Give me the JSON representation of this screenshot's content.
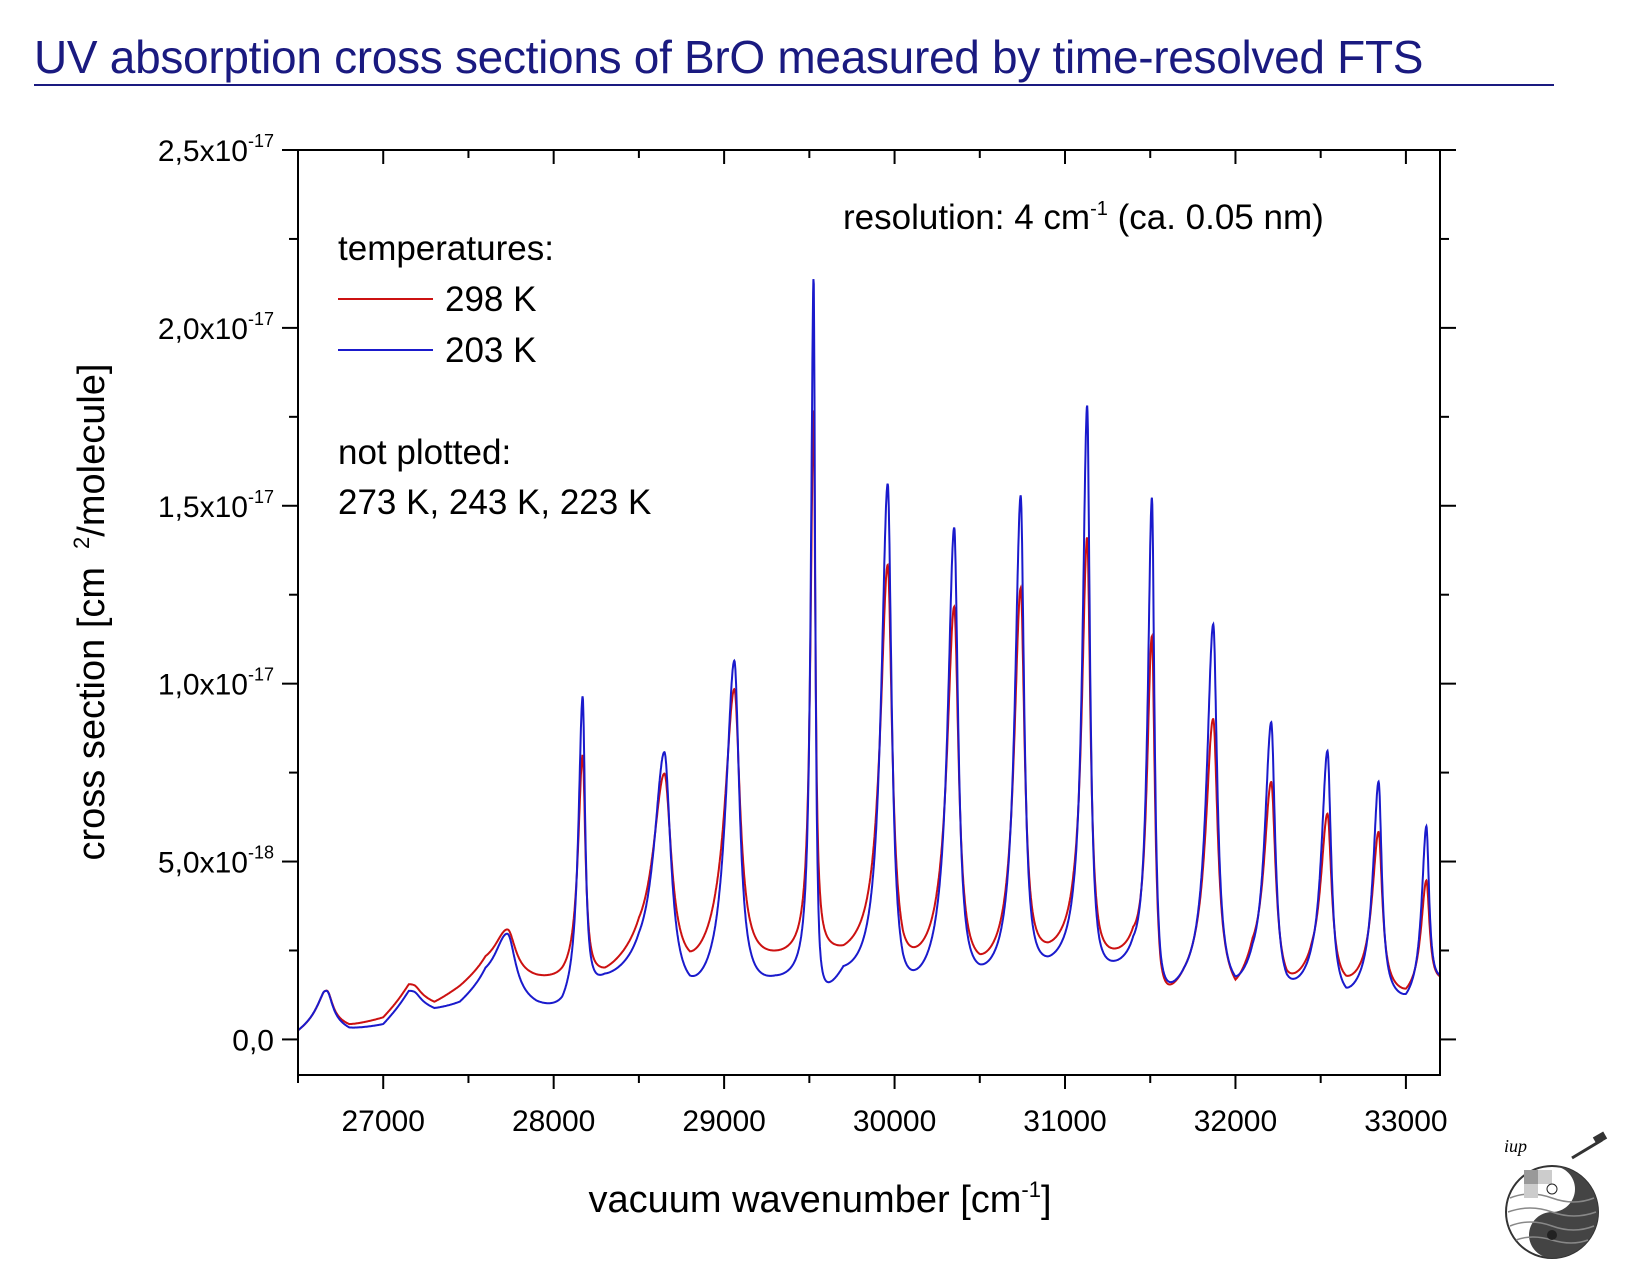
{
  "slide": {
    "title": "UV absorption cross sections of BrO measured by time-resolved FTS",
    "title_color": "#1a1a80"
  },
  "logo": {
    "text": "iup",
    "icon": "iup-globe-logo"
  },
  "chart_data": {
    "type": "line",
    "xlabel": "vacuum wavenumber [cm",
    "xlabel_sup": "-1",
    "xlabel_end": "]",
    "ylabel": "cross section [cm",
    "ylabel_sup": "2",
    "ylabel_end": "/molecule]",
    "xlim": [
      26500,
      33200
    ],
    "ylim": [
      -1e-18,
      2.5e-17
    ],
    "x_ticks": [
      27000,
      28000,
      29000,
      30000,
      31000,
      32000,
      33000
    ],
    "x_tick_labels": [
      "27000",
      "28000",
      "29000",
      "30000",
      "31000",
      "32000",
      "33000"
    ],
    "y_ticks": [
      0,
      5e-18,
      1e-17,
      1.5e-17,
      2e-17,
      2.5e-17
    ],
    "y_tick_labels": [
      {
        "base": "0,0",
        "exp": ""
      },
      {
        "base": "5,0x10",
        "exp": "-18"
      },
      {
        "base": "1,0x10",
        "exp": "-17"
      },
      {
        "base": "1,5x10",
        "exp": "-17"
      },
      {
        "base": "2,0x10",
        "exp": "-17"
      },
      {
        "base": "2,5x10",
        "exp": "-17"
      }
    ],
    "grid": false,
    "legend_position": "top-left",
    "legend_title": "temperatures:",
    "series": [
      {
        "name": "298 K",
        "color": "#cc1111",
        "baseline": [
          [
            26500,
            1e-19
          ],
          [
            26650,
            5e-19
          ],
          [
            26800,
            3e-19
          ],
          [
            27000,
            5e-19
          ],
          [
            27150,
            1.2e-18
          ],
          [
            27300,
            9e-19
          ],
          [
            27450,
            1.3e-18
          ],
          [
            27600,
            1.8e-18
          ],
          [
            27900,
            1.5e-18
          ],
          [
            28050,
            1.4e-18
          ],
          [
            28300,
            1.5e-18
          ],
          [
            28500,
            2e-18
          ],
          [
            28800,
            1.4e-18
          ],
          [
            28950,
            1.8e-18
          ],
          [
            29300,
            2e-18
          ],
          [
            29520,
            2.1e-18
          ],
          [
            29560,
            2.2e-18
          ],
          [
            29700,
            2e-18
          ],
          [
            29900,
            2.1e-18
          ],
          [
            30050,
            1.5e-18
          ],
          [
            30250,
            1.8e-18
          ],
          [
            30500,
            1.5e-18
          ],
          [
            30700,
            1.8e-18
          ],
          [
            30900,
            2e-18
          ],
          [
            31050,
            2.3e-18
          ],
          [
            31200,
            1.9e-18
          ],
          [
            31400,
            2e-18
          ],
          [
            31560,
            5e-19
          ],
          [
            31700,
            1.2e-18
          ],
          [
            31850,
            1.8e-18
          ],
          [
            32000,
            9e-19
          ],
          [
            32100,
            1.6e-18
          ],
          [
            32300,
            1.1e-18
          ],
          [
            32450,
            1.5e-18
          ],
          [
            32650,
            1.2e-18
          ],
          [
            32800,
            1.5e-18
          ],
          [
            33000,
            1e-18
          ],
          [
            33200,
            1.5e-18
          ]
        ],
        "peaks": [
          {
            "x": 26670,
            "y": 8.5e-19,
            "w": 50
          },
          {
            "x": 27180,
            "y": 3e-19,
            "w": 60
          },
          {
            "x": 27730,
            "y": 1.3e-18,
            "w": 70
          },
          {
            "x": 28170,
            "y": 6.3e-18,
            "w": 24
          },
          {
            "x": 28650,
            "y": 5.5e-18,
            "w": 60
          },
          {
            "x": 29060,
            "y": 7.8e-18,
            "w": 50
          },
          {
            "x": 29525,
            "y": 1.53e-17,
            "w": 16
          },
          {
            "x": 29960,
            "y": 1.12e-17,
            "w": 38
          },
          {
            "x": 30350,
            "y": 1.02e-17,
            "w": 38
          },
          {
            "x": 30740,
            "y": 1.06e-17,
            "w": 34
          },
          {
            "x": 31130,
            "y": 1.18e-17,
            "w": 28
          },
          {
            "x": 31510,
            "y": 1.01e-17,
            "w": 26
          },
          {
            "x": 31870,
            "y": 7.1e-18,
            "w": 38
          },
          {
            "x": 32210,
            "y": 5.7e-18,
            "w": 38
          },
          {
            "x": 32540,
            "y": 4.8e-18,
            "w": 36
          },
          {
            "x": 32840,
            "y": 4.3e-18,
            "w": 32
          },
          {
            "x": 33120,
            "y": 3.1e-18,
            "w": 28
          }
        ]
      },
      {
        "name": "203 K",
        "color": "#1a1acc",
        "baseline": [
          [
            26500,
            1e-19
          ],
          [
            26650,
            5e-19
          ],
          [
            26800,
            2e-19
          ],
          [
            27000,
            3e-19
          ],
          [
            27150,
            1e-18
          ],
          [
            27300,
            7e-19
          ],
          [
            27450,
            8e-19
          ],
          [
            27600,
            1.3e-18
          ],
          [
            27900,
            7e-19
          ],
          [
            28050,
            5e-19
          ],
          [
            28300,
            1.3e-18
          ],
          [
            28500,
            1.5e-18
          ],
          [
            28800,
            7e-19
          ],
          [
            28950,
            8e-19
          ],
          [
            29300,
            1.3e-18
          ],
          [
            29520,
            1.4e-18
          ],
          [
            29560,
            6e-19
          ],
          [
            29700,
            1.4e-18
          ],
          [
            29900,
            1.2e-18
          ],
          [
            30050,
            8e-19
          ],
          [
            30250,
            1.2e-18
          ],
          [
            30500,
            1.2e-18
          ],
          [
            30700,
            1.4e-18
          ],
          [
            30900,
            1.6e-18
          ],
          [
            31050,
            1.9e-18
          ],
          [
            31200,
            1.5e-18
          ],
          [
            31400,
            1.7e-18
          ],
          [
            31560,
            6e-19
          ],
          [
            31700,
            1.1e-18
          ],
          [
            31850,
            1.4e-18
          ],
          [
            32000,
            9e-19
          ],
          [
            32100,
            1.3e-18
          ],
          [
            32300,
            9e-19
          ],
          [
            32450,
            1.2e-18
          ],
          [
            32650,
            8e-19
          ],
          [
            32800,
            1.3e-18
          ],
          [
            33000,
            8e-19
          ],
          [
            33200,
            1.5e-18
          ]
        ],
        "peaks": [
          {
            "x": 26670,
            "y": 8.5e-19,
            "w": 50
          },
          {
            "x": 27180,
            "y": 3e-19,
            "w": 60
          },
          {
            "x": 27730,
            "y": 1.8e-18,
            "w": 70
          },
          {
            "x": 28170,
            "y": 8.5e-18,
            "w": 22
          },
          {
            "x": 28650,
            "y": 6.7e-18,
            "w": 55
          },
          {
            "x": 29060,
            "y": 9.5e-18,
            "w": 45
          },
          {
            "x": 29525,
            "y": 1.98e-17,
            "w": 14
          },
          {
            "x": 29960,
            "y": 1.43e-17,
            "w": 34
          },
          {
            "x": 30350,
            "y": 1.29e-17,
            "w": 34
          },
          {
            "x": 30740,
            "y": 1.36e-17,
            "w": 30
          },
          {
            "x": 31130,
            "y": 1.59e-17,
            "w": 24
          },
          {
            "x": 31510,
            "y": 1.4e-17,
            "w": 22
          },
          {
            "x": 31870,
            "y": 1.01e-17,
            "w": 34
          },
          {
            "x": 32210,
            "y": 7.6e-18,
            "w": 34
          },
          {
            "x": 32540,
            "y": 6.9e-18,
            "w": 32
          },
          {
            "x": 32840,
            "y": 5.9e-18,
            "w": 28
          },
          {
            "x": 33120,
            "y": 4.7e-18,
            "w": 24
          }
        ]
      }
    ],
    "annotations": {
      "resolution_prefix": "resolution: 4 cm",
      "resolution_sup": "-1",
      "resolution_suffix": " (ca. 0.05 nm)",
      "not_plotted_title": "not plotted:",
      "not_plotted_values": "273 K, 243 K, 223 K"
    }
  }
}
